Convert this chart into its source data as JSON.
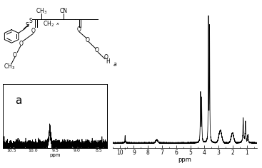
{
  "background_color": "#e8e8e8",
  "inset_label": "a",
  "main_xticks": [
    10,
    9,
    8,
    7,
    6,
    5,
    4,
    3,
    2,
    1
  ],
  "inset_xticks": [
    10.5,
    10.0,
    9.5,
    9.0,
    8.5
  ],
  "inset_xticklabels": [
    "10.5",
    "10.0",
    "9.5",
    "9.0",
    "8.5"
  ],
  "xlabel": "ppm",
  "fig_bg": "#d8d8d8"
}
